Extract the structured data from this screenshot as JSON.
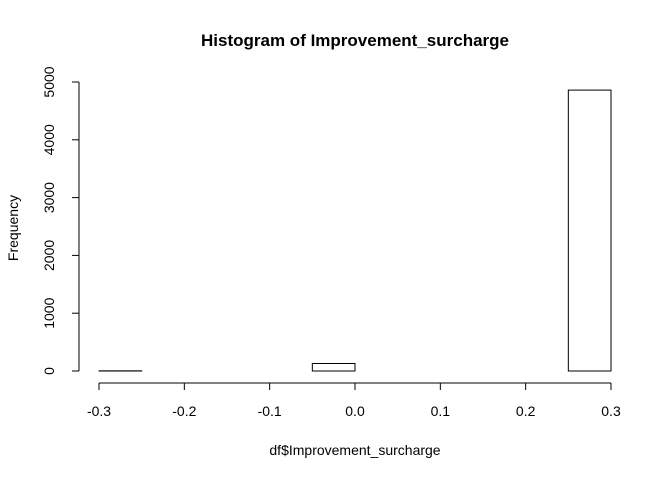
{
  "chart_data": {
    "type": "bar",
    "title": "Histogram of Improvement_surcharge",
    "xlabel": "df$Improvement_surcharge",
    "ylabel": "Frequency",
    "xlim": [
      -0.3,
      0.3
    ],
    "ylim": [
      0,
      5000
    ],
    "x_ticks": [
      -0.3,
      -0.2,
      -0.1,
      0.0,
      0.1,
      0.2,
      0.3
    ],
    "x_tick_labels": [
      "-0.3",
      "-0.2",
      "-0.1",
      "0.0",
      "0.1",
      "0.2",
      "0.3"
    ],
    "y_ticks": [
      0,
      1000,
      2000,
      3000,
      4000,
      5000
    ],
    "y_tick_labels": [
      "0",
      "1000",
      "2000",
      "3000",
      "4000",
      "5000"
    ],
    "bins": [
      {
        "start": -0.3,
        "end": -0.25,
        "value": 3
      },
      {
        "start": -0.25,
        "end": -0.2,
        "value": 0
      },
      {
        "start": -0.2,
        "end": -0.15,
        "value": 0
      },
      {
        "start": -0.15,
        "end": -0.1,
        "value": 0
      },
      {
        "start": -0.1,
        "end": -0.05,
        "value": 0
      },
      {
        "start": -0.05,
        "end": 0.0,
        "value": 130
      },
      {
        "start": 0.0,
        "end": 0.05,
        "value": 0
      },
      {
        "start": 0.05,
        "end": 0.1,
        "value": 0
      },
      {
        "start": 0.1,
        "end": 0.15,
        "value": 0
      },
      {
        "start": 0.15,
        "end": 0.2,
        "value": 0
      },
      {
        "start": 0.2,
        "end": 0.25,
        "value": 0
      },
      {
        "start": 0.25,
        "end": 0.3,
        "value": 4860
      }
    ],
    "grid": false,
    "legend": "none"
  }
}
